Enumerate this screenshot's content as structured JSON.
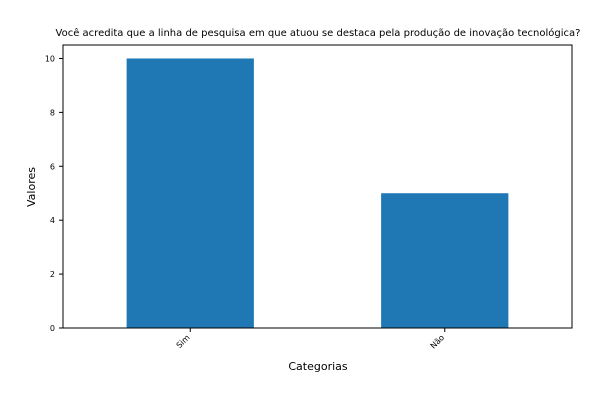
{
  "chart_data": {
    "type": "bar",
    "title": "Você acredita que a linha de pesquisa em que atuou se destaca pela produção de inovação tecnológica?",
    "xlabel": "Categorias",
    "ylabel": "Valores",
    "categories": [
      "Sim",
      "Não"
    ],
    "values": [
      10,
      5
    ],
    "ylim": [
      0,
      10.5
    ],
    "yticks": [
      0,
      2,
      4,
      6,
      8,
      10
    ],
    "grid": false,
    "legend": "none",
    "bar_color": "#1f77b4"
  }
}
